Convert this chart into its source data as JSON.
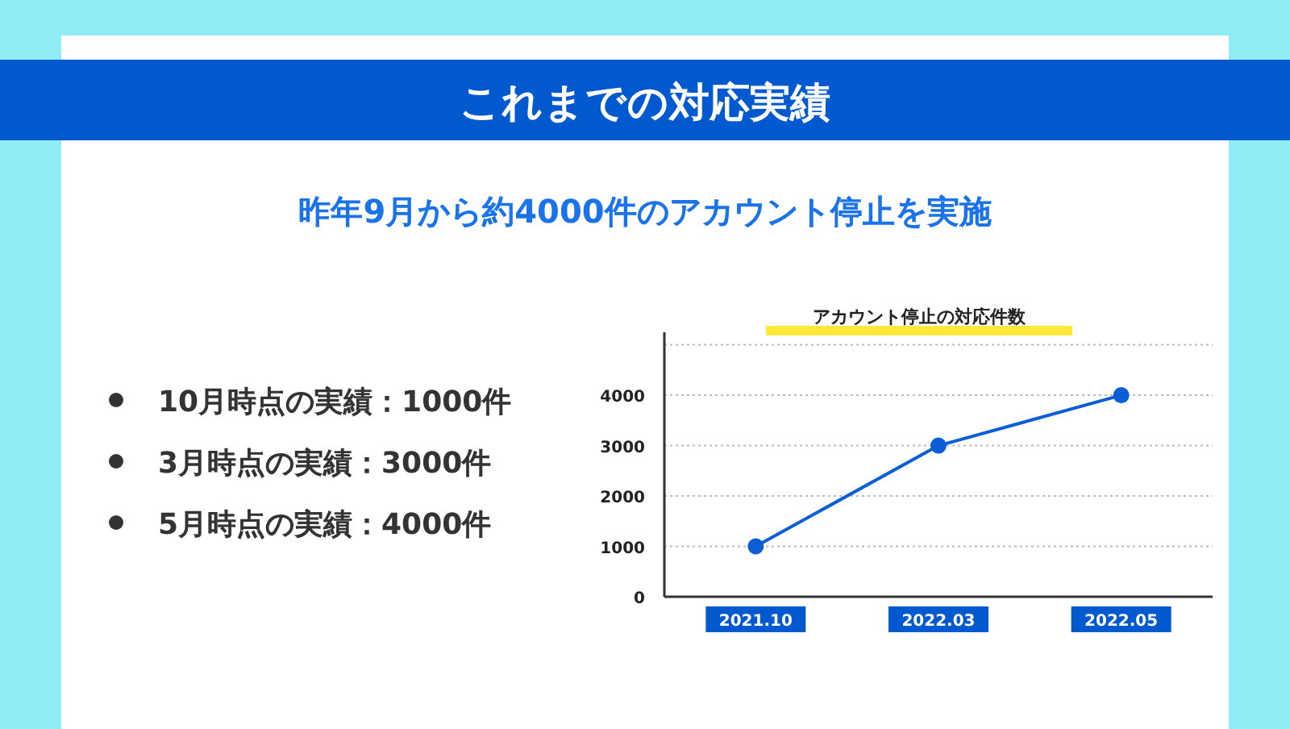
{
  "chart_data": [
    {
      "type": "other",
      "title": "これまでの対応実績",
      "subtitle": "昨年9月から約4000件のアカウント停止を実施",
      "annotations": [
        "10月時点の実績：1000件",
        "3月時点の実績：3000件",
        "5月時点の実績：4000件"
      ]
    },
    {
      "type": "line",
      "title": "アカウント停止の対応件数",
      "categories": [
        "2021.10",
        "2022.03",
        "2022.05"
      ],
      "series": [
        {
          "color": "#0a5fd6",
          "values": [
            1000,
            3000,
            4000
          ]
        }
      ],
      "ylim": [
        0,
        5250
      ],
      "yticks": [
        0,
        1000,
        2000,
        3000,
        4000,
        {
          "value": 5000,
          "label": null
        }
      ],
      "grid": "y",
      "marker": "circle",
      "line_style": "solid"
    }
  ]
}
